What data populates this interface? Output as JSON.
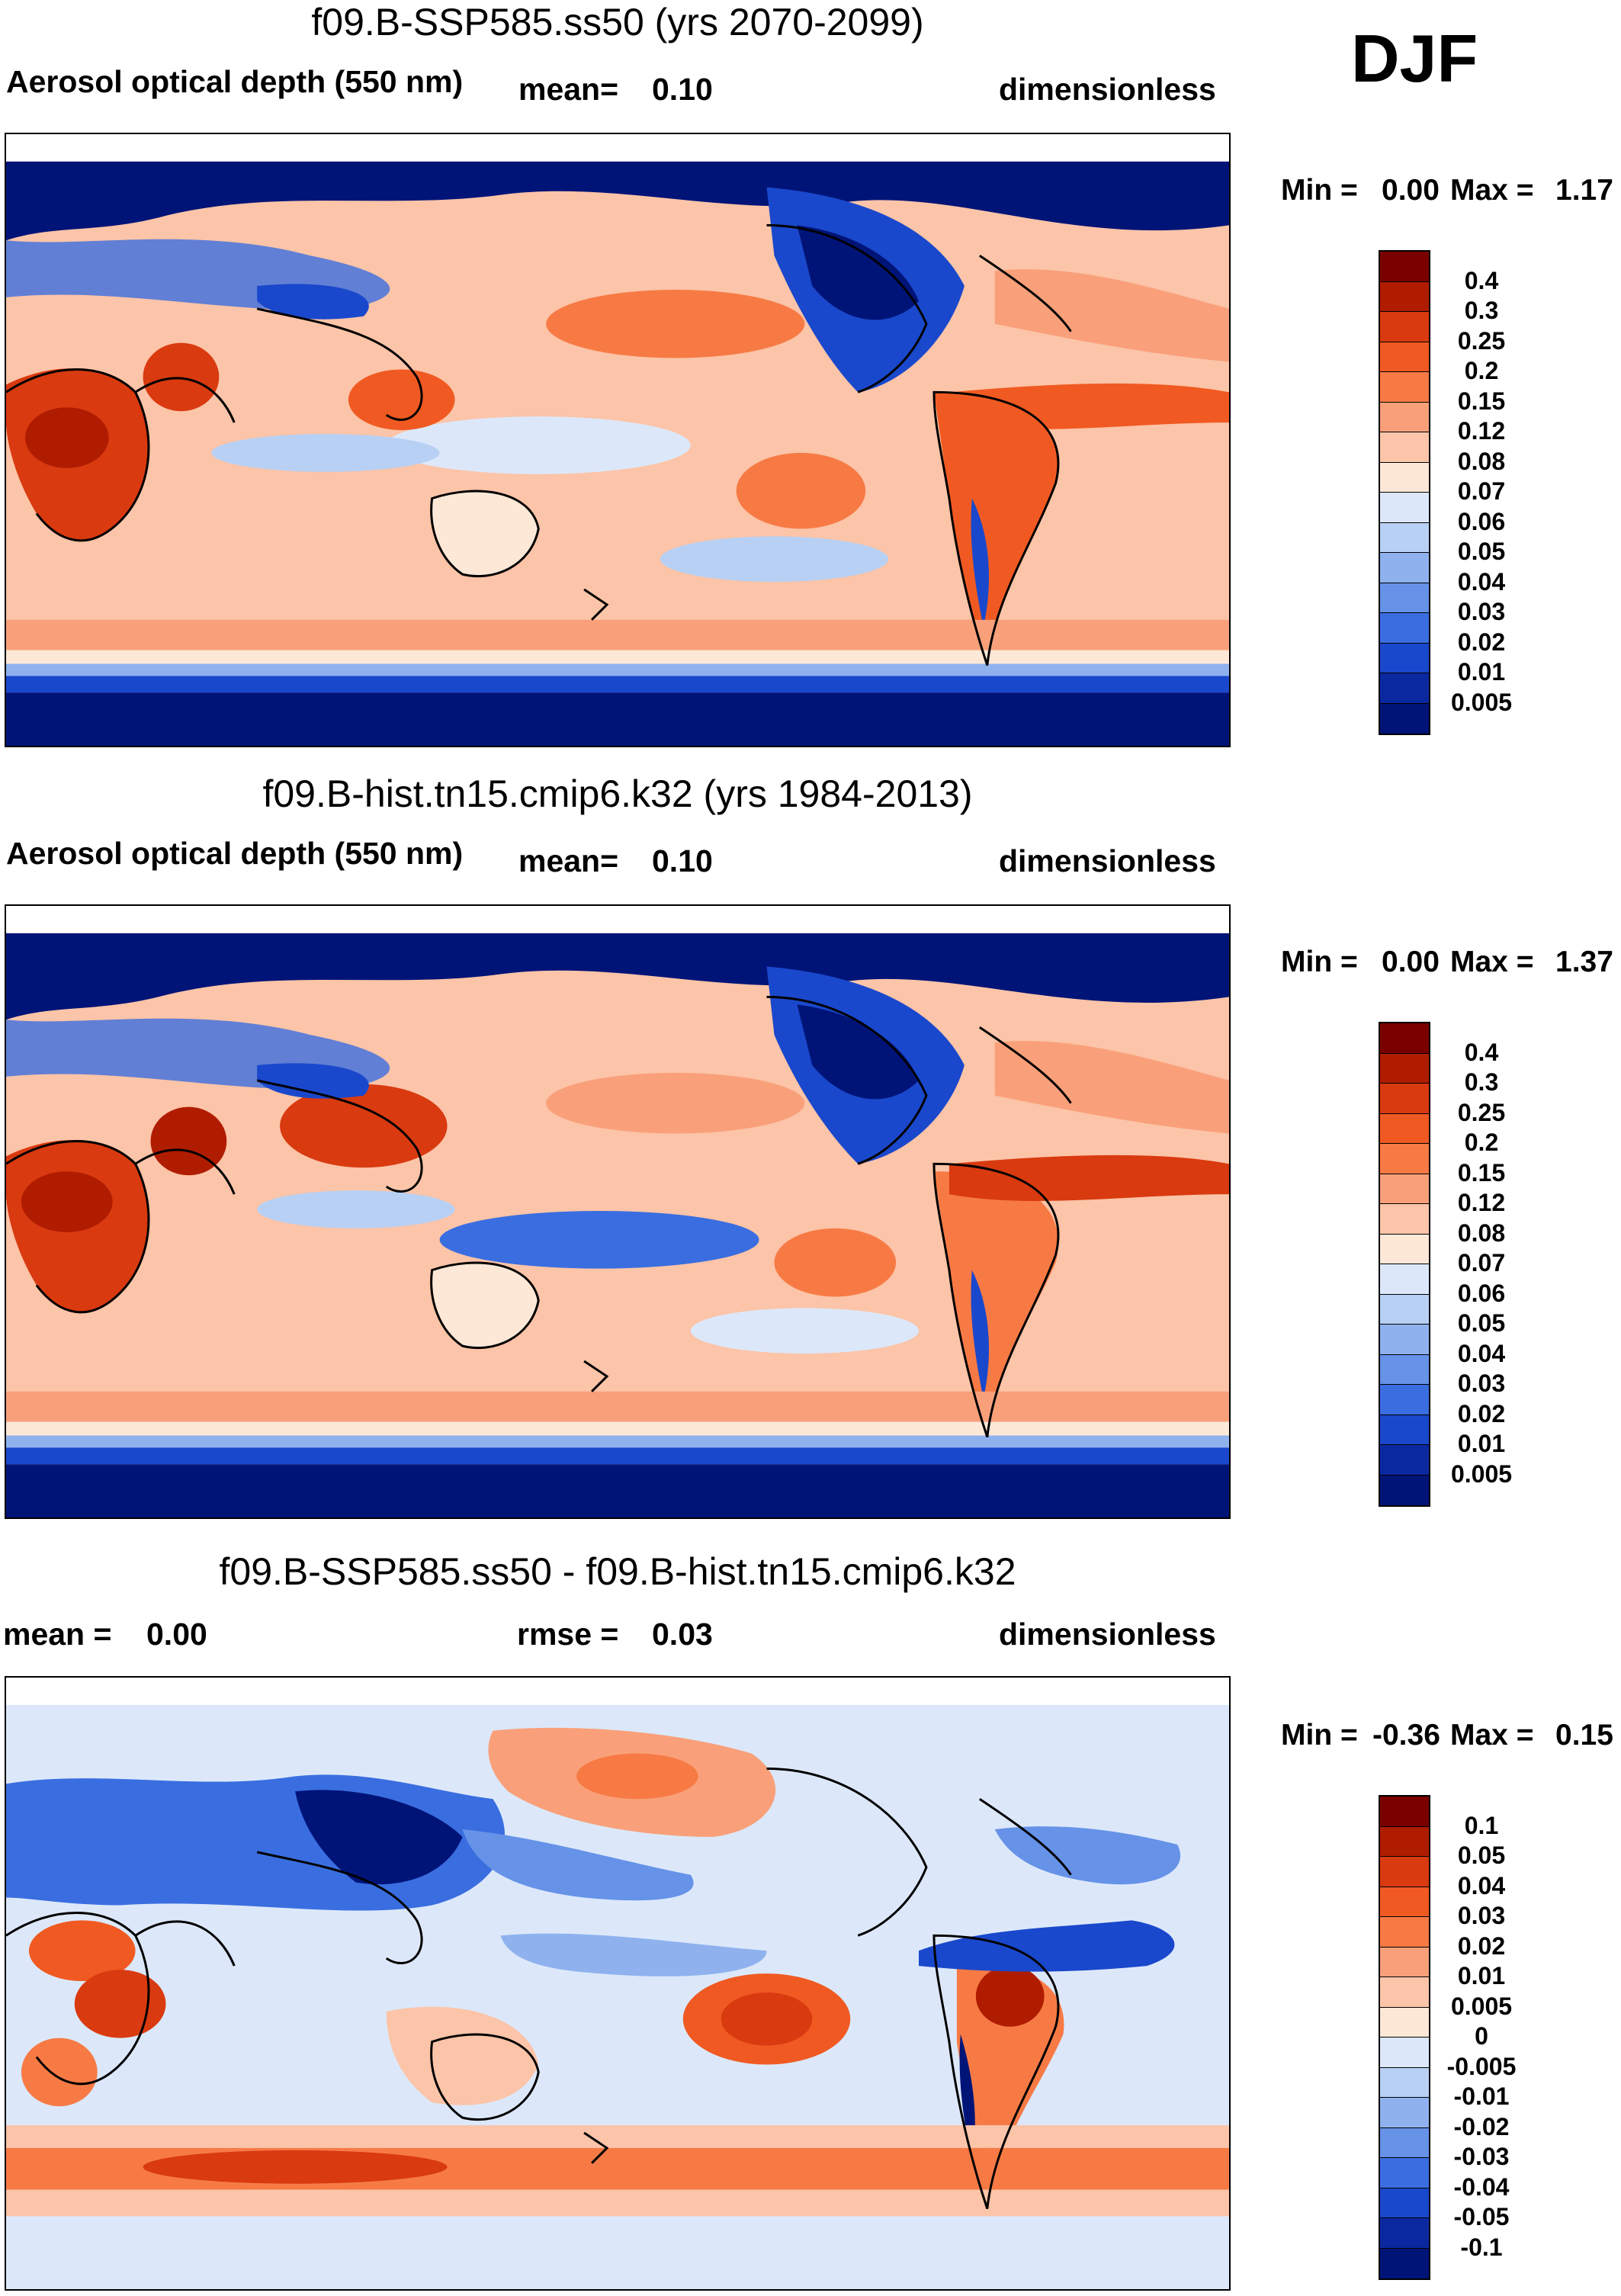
{
  "season": "DJF",
  "panels": [
    {
      "title": "f09.B-SSP585.ss50 (yrs 2070-2099)",
      "left_label": "Aerosol optical depth (550 nm)",
      "stat1_label": "mean=",
      "stat1_value": "0.10",
      "units": "dimensionless",
      "min_label": "Min =",
      "min_value": "0.00",
      "max_label": "Max =",
      "max_value": "1.17",
      "levels": [
        "0.4",
        "0.3",
        "0.25",
        "0.2",
        "0.15",
        "0.12",
        "0.08",
        "0.07",
        "0.06",
        "0.05",
        "0.04",
        "0.03",
        "0.02",
        "0.01",
        "0.005"
      ]
    },
    {
      "title": "f09.B-hist.tn15.cmip6.k32 (yrs 1984-2013)",
      "left_label": "Aerosol optical depth (550 nm)",
      "stat1_label": "mean=",
      "stat1_value": "0.10",
      "units": "dimensionless",
      "min_label": "Min =",
      "min_value": "0.00",
      "max_label": "Max =",
      "max_value": "1.37",
      "levels": [
        "0.4",
        "0.3",
        "0.25",
        "0.2",
        "0.15",
        "0.12",
        "0.08",
        "0.07",
        "0.06",
        "0.05",
        "0.04",
        "0.03",
        "0.02",
        "0.01",
        "0.005"
      ]
    },
    {
      "title": "f09.B-SSP585.ss50 - f09.B-hist.tn15.cmip6.k32",
      "left_label": "mean =",
      "left_value": "0.00",
      "stat1_label": "rmse =",
      "stat1_value": "0.03",
      "units": "dimensionless",
      "min_label": "Min =",
      "min_value": "-0.36",
      "max_label": "Max =",
      "max_value": "0.15",
      "levels": [
        "0.1",
        "0.05",
        "0.04",
        "0.03",
        "0.02",
        "0.01",
        "0.005",
        "0",
        "-0.005",
        "-0.01",
        "-0.02",
        "-0.03",
        "-0.04",
        "-0.05",
        "-0.1"
      ]
    }
  ],
  "colors": {
    "abs_scale": [
      "#7a0000",
      "#b01c00",
      "#d93a10",
      "#f05a22",
      "#f77a45",
      "#f9a07a",
      "#fcc4a8",
      "#fde8d8",
      "#dce8fa",
      "#b8d0f4",
      "#8fb2ee",
      "#6692e8",
      "#3a6ee0",
      "#1a48cc",
      "#0a28a0",
      "#001478"
    ],
    "diff_scale": [
      "#7a0000",
      "#b01c00",
      "#d93a10",
      "#f05a22",
      "#f77a45",
      "#f9a07a",
      "#fcc4a8",
      "#fde8d8",
      "#dce8fa",
      "#b8d0f4",
      "#8fb2ee",
      "#6692e8",
      "#3a6ee0",
      "#1a48cc",
      "#0a28a0",
      "#001478"
    ],
    "ocean_mid": "#fcc4a8",
    "polar": "#001478"
  }
}
